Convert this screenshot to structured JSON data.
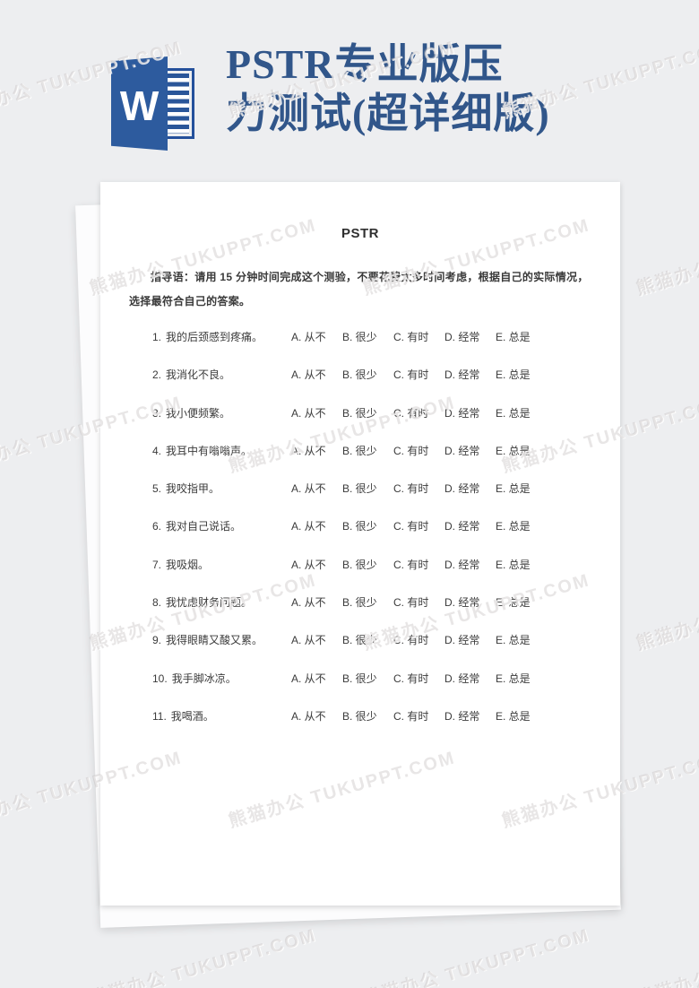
{
  "header": {
    "title_lines": [
      "PSTR专业版压",
      "力测试(超详细版)"
    ],
    "title_color": "#31568a",
    "word_icon": {
      "letter": "W",
      "color": "#2b579a"
    }
  },
  "watermark": {
    "text": "熊猫办公 TUKUPPT.COM"
  },
  "document": {
    "title": "PSTR",
    "instructions": "指导语：请用 15 分钟时间完成这个测验，不要花费太多时间考虑，根据自己的实际情况，选择最符合自己的答案。",
    "options": [
      "A. 从不",
      "B. 很少",
      "C. 有时",
      "D. 经常",
      "E. 总是"
    ],
    "questions": [
      {
        "no": "1.",
        "text": "我的后颈感到疼痛。"
      },
      {
        "no": "2.",
        "text": "我消化不良。"
      },
      {
        "no": "3.",
        "text": "我小便频繁。"
      },
      {
        "no": "4.",
        "text": "我耳中有嗡嗡声。"
      },
      {
        "no": "5.",
        "text": "我咬指甲。"
      },
      {
        "no": "6.",
        "text": "我对自己说话。"
      },
      {
        "no": "7.",
        "text": "我吸烟。"
      },
      {
        "no": "8.",
        "text": "我忧虑财务问题。"
      },
      {
        "no": "9.",
        "text": "我得眼睛又酸又累。"
      },
      {
        "no": "10.",
        "text": "我手脚冰凉。"
      },
      {
        "no": "11.",
        "text": "我喝酒。"
      }
    ]
  }
}
